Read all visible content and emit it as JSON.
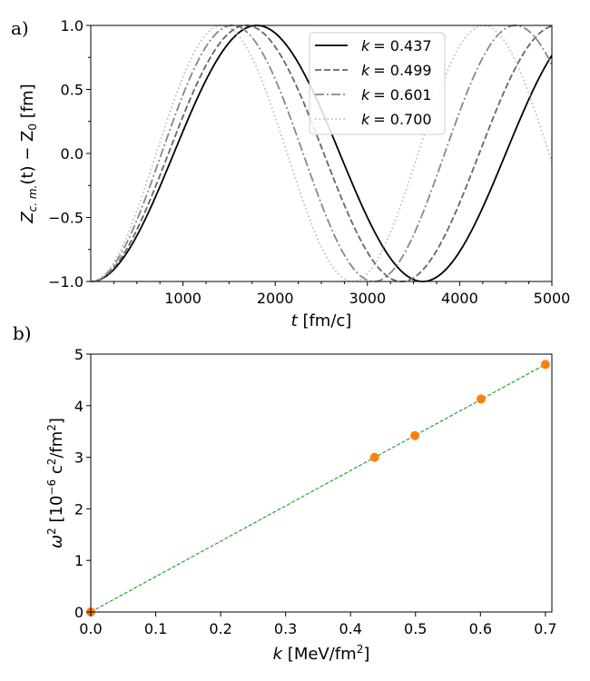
{
  "chart_data": [
    {
      "panel_label": "a)",
      "type": "line",
      "xlabel_var": "t",
      "xlabel_unit": " [fm/c]",
      "ylabel_main": "Z",
      "ylabel_sub": "c. m.",
      "ylabel_mid": "(t) − Z",
      "ylabel_sub2": "0",
      "ylabel_unit": " [fm]",
      "xlim": [
        0,
        5000
      ],
      "ylim": [
        -1.0,
        1.0
      ],
      "xticks": [
        1000,
        2000,
        3000,
        4000,
        5000
      ],
      "xtick_labels": [
        "1000",
        "2000",
        "3000",
        "4000",
        "5000"
      ],
      "yticks": [
        -1.0,
        -0.5,
        0.0,
        0.5,
        1.0
      ],
      "ytick_labels": [
        "−1.0",
        "−0.5",
        "0.0",
        "0.5",
        "1.0"
      ],
      "legend_position": "top-right",
      "legend_var": "k",
      "series": [
        {
          "name": "0.437",
          "legend": "= 0.437",
          "period": 3600,
          "color": "#000000",
          "style": "solid"
        },
        {
          "name": "0.499",
          "legend": "= 0.499",
          "period": 3370,
          "color": "#666666",
          "style": "dashed"
        },
        {
          "name": "0.601",
          "legend": "= 0.601",
          "period": 3070,
          "color": "#888888",
          "style": "dashdot"
        },
        {
          "name": "0.700",
          "legend": "= 0.700",
          "period": 2840,
          "color": "#bbbbbb",
          "style": "dotted"
        }
      ]
    },
    {
      "panel_label": "b)",
      "type": "scatter",
      "xlabel_var": "k",
      "xlabel_unit": " [MeV/fm",
      "xlabel_unit_sup": "2",
      "xlabel_unit_end": "]",
      "ylabel_var": "ω",
      "ylabel_sup": "2",
      "ylabel_unit": " [10",
      "ylabel_unit_sup": "−6",
      "ylabel_unit_mid": " c",
      "ylabel_unit_sup2": "2",
      "ylabel_unit_mid2": "/fm",
      "ylabel_unit_sup3": "2",
      "ylabel_unit_end": "]",
      "xlim": [
        0,
        0.71
      ],
      "ylim": [
        0,
        5
      ],
      "xticks": [
        0.0,
        0.1,
        0.2,
        0.3,
        0.4,
        0.5,
        0.6,
        0.7
      ],
      "xtick_labels": [
        "0.0",
        "0.1",
        "0.2",
        "0.3",
        "0.4",
        "0.5",
        "0.6",
        "0.7"
      ],
      "yticks": [
        0,
        1,
        2,
        3,
        4,
        5
      ],
      "ytick_labels": [
        "0",
        "1",
        "2",
        "3",
        "4",
        "5"
      ],
      "points": {
        "x": [
          0.0,
          0.437,
          0.499,
          0.601,
          0.7
        ],
        "y": [
          0.0,
          3.0,
          3.42,
          4.13,
          4.8
        ],
        "color": "#ff7f0e"
      },
      "fit_line": {
        "x": [
          0.0,
          0.7
        ],
        "y": [
          0.0,
          4.8
        ],
        "color": "#2ca02c",
        "style": "dashed"
      }
    }
  ]
}
